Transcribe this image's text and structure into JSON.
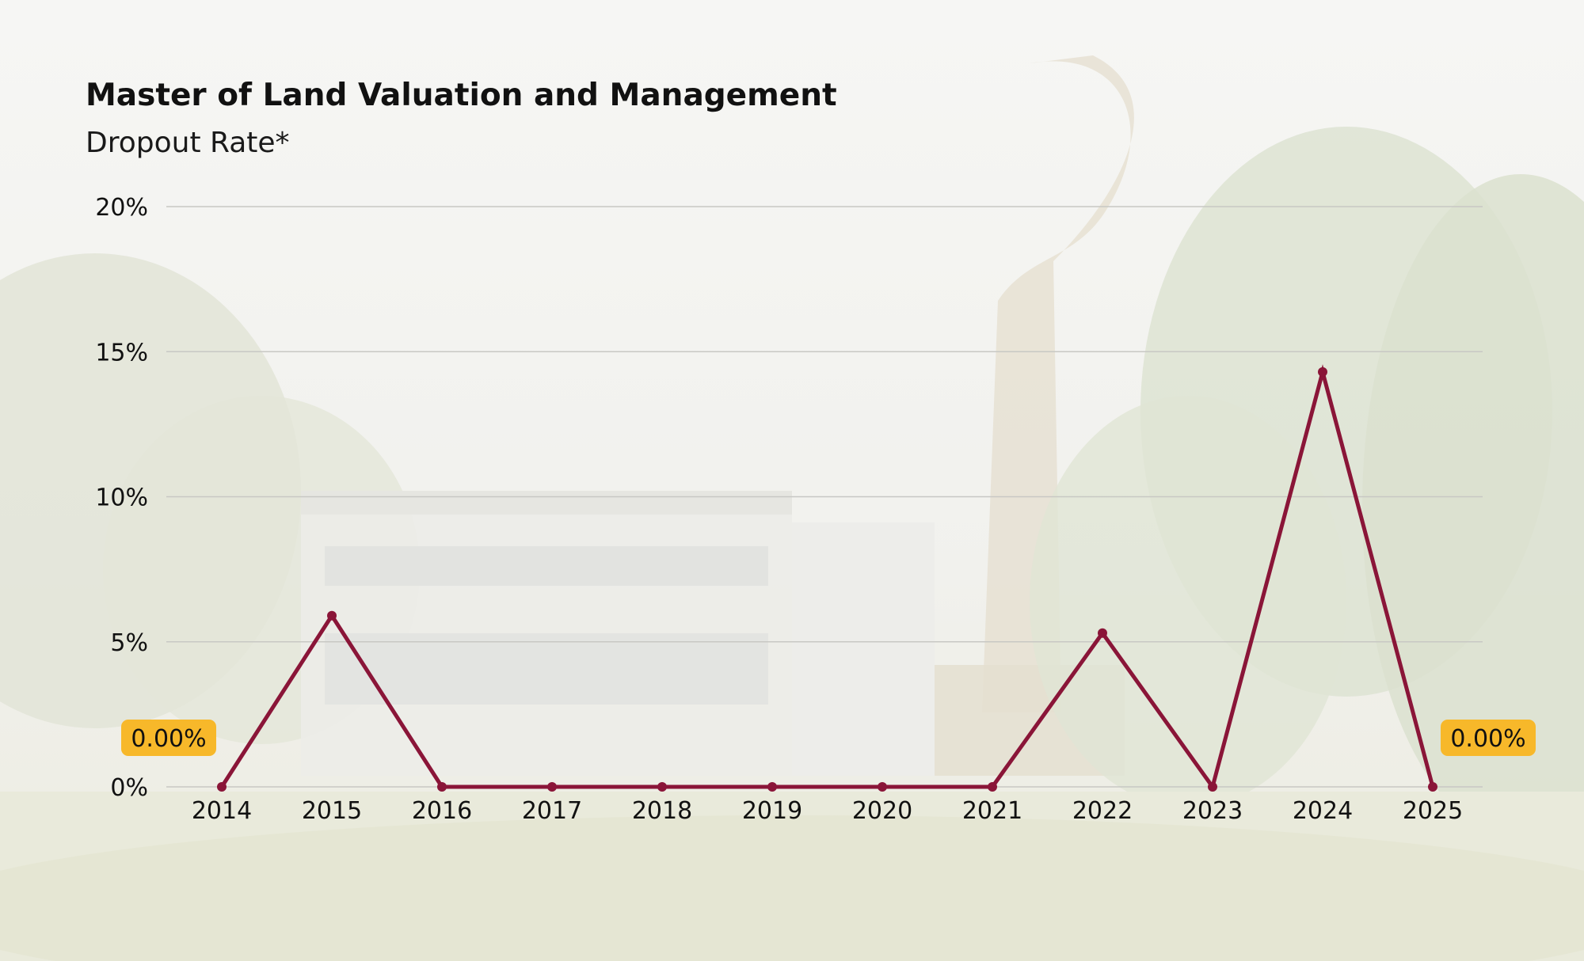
{
  "title": "Master of Land Valuation and Management",
  "subtitle": "Dropout Rate*",
  "colors": {
    "line": "#8a1538",
    "gridline": "#c8c8c4",
    "callout_fill": "#f7b82a",
    "text": "#111111"
  },
  "chart_data": {
    "type": "line",
    "categories": [
      "2014",
      "2015",
      "2016",
      "2017",
      "2018",
      "2019",
      "2020",
      "2021",
      "2022",
      "2023",
      "2024",
      "2025"
    ],
    "series": [
      {
        "values": [
          0,
          5.9,
          0,
          0,
          0,
          0,
          0,
          0,
          5.3,
          0,
          14.3,
          0
        ]
      }
    ],
    "ylim": [
      0,
      20
    ],
    "yticks": [
      0,
      5,
      10,
      15,
      20
    ],
    "ytick_labels": [
      "0%",
      "5%",
      "10%",
      "15%",
      "20%"
    ],
    "grid": true,
    "legend": "none",
    "annotations": [
      {
        "category": "2014",
        "text": "0.00%",
        "placement": "left"
      },
      {
        "category": "2025",
        "text": "0.00%",
        "placement": "right"
      }
    ]
  }
}
